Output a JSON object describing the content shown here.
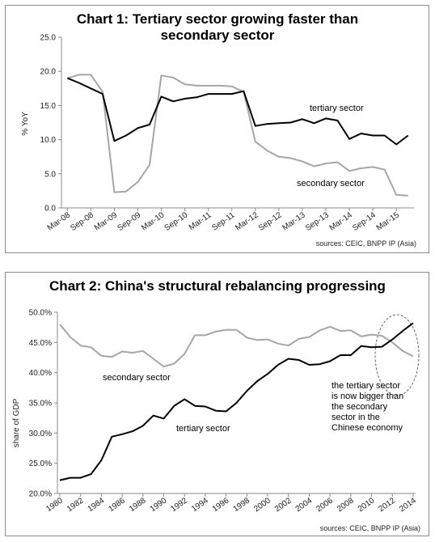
{
  "chart_data": [
    {
      "type": "line",
      "title": "Chart 1: Tertiary sector growing faster than secondary sector",
      "title_lines": [
        "Chart 1: Tertiary sector growing faster than",
        "secondary sector"
      ],
      "ylabel": "% YoY",
      "ylim": [
        0,
        25
      ],
      "yticks": [
        "0.0",
        "5.0",
        "10.0",
        "15.0",
        "20.0",
        "25.0"
      ],
      "categories": [
        "Mar-08",
        "Jun-08",
        "Sep-08",
        "Dec-08",
        "Mar-09",
        "Jun-09",
        "Sep-09",
        "Dec-09",
        "Mar-10",
        "Jun-10",
        "Sep-10",
        "Dec-10",
        "Mar-11",
        "Jun-11",
        "Sep-11",
        "Dec-11",
        "Mar-12",
        "Jun-12",
        "Sep-12",
        "Dec-12",
        "Mar-13",
        "Jun-13",
        "Sep-13",
        "Dec-13",
        "Mar-14",
        "Jun-14",
        "Sep-14",
        "Dec-14",
        "Mar-15",
        "Jun-15"
      ],
      "xtick_labels": [
        "Mar-08",
        "Sep-08",
        "Mar-09",
        "Sep-09",
        "Mar-10",
        "Sep-10",
        "Mar-11",
        "Sep-11",
        "Mar-12",
        "Sep-12",
        "Mar-13",
        "Sep-13",
        "Mar-14",
        "Sep-14",
        "Mar-15"
      ],
      "series": [
        {
          "name": "tertiary sector",
          "color": "#000000",
          "values": [
            19.0,
            18.3,
            17.5,
            16.7,
            9.8,
            10.6,
            11.7,
            12.2,
            16.3,
            15.6,
            16.0,
            16.2,
            16.7,
            16.7,
            16.7,
            17.1,
            12.0,
            12.3,
            12.4,
            12.5,
            13.0,
            12.4,
            13.1,
            12.8,
            10.1,
            10.9,
            10.6,
            10.6,
            9.3,
            10.6
          ]
        },
        {
          "name": "secondary sector",
          "color": "#a6a6a6",
          "values": [
            19.0,
            19.5,
            19.5,
            17.0,
            2.3,
            2.4,
            3.8,
            6.3,
            19.4,
            19.1,
            18.1,
            17.9,
            17.9,
            17.9,
            17.8,
            17.0,
            9.7,
            8.4,
            7.5,
            7.3,
            6.8,
            6.1,
            6.5,
            6.7,
            5.4,
            5.8,
            6.0,
            5.6,
            1.9,
            1.8
          ]
        }
      ],
      "annotations": [
        "tertiary sector",
        "secondary sector"
      ],
      "source": "sources: CEIC, BNPP IP (Asia)",
      "grid": false
    },
    {
      "type": "line",
      "title": "Chart 2: China's structural rebalancing progressing",
      "ylabel": "share of GDP",
      "ylim": [
        20,
        50
      ],
      "yticks": [
        "20.0%",
        "25.0%",
        "30.0%",
        "35.0%",
        "40.0%",
        "45.0%",
        "50.0%"
      ],
      "x": [
        1980,
        1981,
        1982,
        1983,
        1984,
        1985,
        1986,
        1987,
        1988,
        1989,
        1990,
        1991,
        1992,
        1993,
        1994,
        1995,
        1996,
        1997,
        1998,
        1999,
        2000,
        2001,
        2002,
        2003,
        2004,
        2005,
        2006,
        2007,
        2008,
        2009,
        2010,
        2011,
        2012,
        2013,
        2014
      ],
      "xtick_labels": [
        "1980",
        "1982",
        "1984",
        "1986",
        "1988",
        "1990",
        "1992",
        "1994",
        "1996",
        "1998",
        "2000",
        "2002",
        "2004",
        "2006",
        "2008",
        "2010",
        "2012",
        "2014"
      ],
      "series": [
        {
          "name": "secondary sector",
          "color": "#a6a6a6",
          "values": [
            48.0,
            45.9,
            44.5,
            44.2,
            42.8,
            42.6,
            43.5,
            43.3,
            43.6,
            42.3,
            41.0,
            41.5,
            43.1,
            46.2,
            46.2,
            46.8,
            47.1,
            47.1,
            45.8,
            45.4,
            45.5,
            44.8,
            44.5,
            45.6,
            45.9,
            47.0,
            47.6,
            46.9,
            47.0,
            46.0,
            46.3,
            46.1,
            45.0,
            43.6,
            42.7
          ]
        },
        {
          "name": "tertiary sector",
          "color": "#000000",
          "values": [
            22.2,
            22.6,
            22.6,
            23.2,
            25.5,
            29.4,
            29.8,
            30.3,
            31.2,
            32.9,
            32.4,
            34.5,
            35.6,
            34.5,
            34.4,
            33.7,
            33.6,
            35.0,
            37.0,
            38.6,
            39.8,
            41.3,
            42.3,
            42.1,
            41.3,
            41.4,
            41.9,
            42.9,
            42.9,
            44.4,
            44.2,
            44.3,
            45.5,
            46.9,
            48.2
          ]
        }
      ],
      "annotations": [
        "secondary sector",
        "tertiary sector"
      ],
      "note_lines": [
        "the tertiary sector",
        "is now bigger than",
        "the secondary",
        "sector in the",
        "Chinese economy"
      ],
      "source": "sources: CEIC, BNPP IP (Asia)",
      "grid": false
    }
  ]
}
